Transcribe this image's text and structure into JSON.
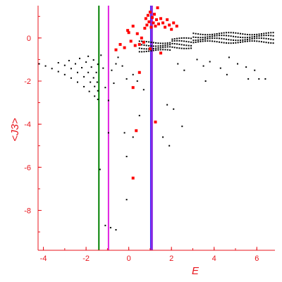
{
  "chart_data": {
    "type": "scatter",
    "xlabel": "E",
    "ylabel": "<J3>",
    "xlim": [
      -4.25,
      6.85
    ],
    "ylim": [
      -9.85,
      1.5
    ],
    "x_ticks": [
      -4,
      -2,
      0,
      2,
      4,
      6
    ],
    "x_tick_labels": [
      "-4",
      "-2",
      "0",
      "2",
      "4",
      "6"
    ],
    "y_ticks": [
      0,
      -2,
      -4,
      -6,
      -8
    ],
    "y_tick_labels": [
      "0",
      "-2",
      "-4",
      "-6",
      "-8"
    ],
    "grid": false,
    "colors": {
      "axes": "#e8141c",
      "black_points": "#000000",
      "red_points": "#ff0000",
      "green_line": "#008000",
      "magenta_line": "#e020e0",
      "purple_line": "#8a2be2",
      "blue_line": "#2020ff"
    },
    "vertical_lines": [
      {
        "x": -1.4,
        "color": "#008000"
      },
      {
        "x": -0.95,
        "color": "#e020e0"
      },
      {
        "x": 1.05,
        "color": "#2020ff"
      },
      {
        "x": 1.08,
        "color": "#8a2be2"
      }
    ],
    "series": [
      {
        "marker": "black-dot",
        "points": [
          [
            -4.2,
            -1.2
          ],
          [
            -3.9,
            -1.3
          ],
          [
            -3.6,
            -1.42
          ],
          [
            -3.3,
            -1.56
          ],
          [
            -3.0,
            -1.7
          ],
          [
            -2.7,
            -1.86
          ],
          [
            -2.4,
            -2.05
          ],
          [
            -2.1,
            -2.26
          ],
          [
            -1.85,
            -2.48
          ],
          [
            -1.6,
            -2.7
          ],
          [
            -1.45,
            -2.85
          ],
          [
            -3.3,
            -1.15
          ],
          [
            -3.0,
            -1.27
          ],
          [
            -2.7,
            -1.42
          ],
          [
            -2.4,
            -1.6
          ],
          [
            -2.1,
            -1.8
          ],
          [
            -1.8,
            -2.05
          ],
          [
            -1.6,
            -2.25
          ],
          [
            -1.45,
            -2.45
          ],
          [
            -2.8,
            -1.05
          ],
          [
            -2.5,
            -1.2
          ],
          [
            -2.2,
            -1.38
          ],
          [
            -1.9,
            -1.6
          ],
          [
            -1.65,
            -1.85
          ],
          [
            -1.48,
            -2.05
          ],
          [
            -2.3,
            -0.95
          ],
          [
            -2.0,
            -1.12
          ],
          [
            -1.75,
            -1.35
          ],
          [
            -1.52,
            -1.6
          ],
          [
            -1.9,
            -0.85
          ],
          [
            -1.65,
            -1.02
          ],
          [
            -1.45,
            -1.22
          ],
          [
            -1.3,
            -0.8
          ],
          [
            -1.2,
            -1.4
          ],
          [
            -1.1,
            -2.3
          ],
          [
            -0.95,
            -2.9
          ],
          [
            -0.8,
            -1.5
          ],
          [
            -0.7,
            -2.1
          ],
          [
            -0.6,
            -1.2
          ],
          [
            -0.5,
            -0.9
          ],
          [
            -0.3,
            -1.3
          ],
          [
            -0.1,
            -1.9
          ],
          [
            -1.35,
            -6.1
          ],
          [
            -1.1,
            -8.7
          ],
          [
            -0.85,
            -8.8
          ],
          [
            -0.6,
            -8.9
          ],
          [
            -0.95,
            -4.4
          ],
          [
            -0.2,
            -4.4
          ],
          [
            0.2,
            -4.6
          ],
          [
            -0.1,
            -5.5
          ],
          [
            -0.1,
            -7.5
          ],
          [
            0.5,
            -3.6
          ],
          [
            0.7,
            -2.4
          ],
          [
            0.4,
            -2.0
          ],
          [
            0.2,
            -1.7
          ],
          [
            1.6,
            -4.6
          ],
          [
            1.9,
            -5.0
          ],
          [
            2.5,
            -4.1
          ],
          [
            1.8,
            -3.1
          ],
          [
            2.1,
            -3.3
          ],
          [
            2.3,
            -1.2
          ],
          [
            2.6,
            -1.5
          ],
          [
            3.2,
            -1.0
          ],
          [
            3.5,
            -1.3
          ],
          [
            3.8,
            -1.1
          ],
          [
            4.3,
            -1.4
          ],
          [
            4.7,
            -0.9
          ],
          [
            5.1,
            -1.2
          ],
          [
            5.5,
            -1.35
          ],
          [
            5.9,
            -1.5
          ],
          [
            6.1,
            -1.9
          ],
          [
            6.4,
            -1.9
          ],
          [
            5.6,
            -1.9
          ],
          [
            3.6,
            -2.0
          ],
          [
            4.6,
            -1.7
          ]
        ]
      },
      {
        "marker": "red-square",
        "points": [
          [
            0.75,
            0.45
          ],
          [
            0.8,
            0.9
          ],
          [
            0.85,
            0.6
          ],
          [
            0.9,
            1.05
          ],
          [
            0.95,
            0.75
          ],
          [
            1.0,
            1.2
          ],
          [
            1.05,
            0.5
          ],
          [
            1.1,
            0.95
          ],
          [
            1.15,
            0.7
          ],
          [
            1.2,
            1.1
          ],
          [
            1.25,
            0.55
          ],
          [
            1.3,
            0.85
          ],
          [
            1.35,
            1.4
          ],
          [
            1.4,
            0.65
          ],
          [
            1.5,
            0.9
          ],
          [
            1.6,
            0.7
          ],
          [
            1.7,
            0.5
          ],
          [
            1.8,
            0.85
          ],
          [
            1.9,
            0.6
          ],
          [
            2.0,
            0.4
          ],
          [
            2.1,
            0.7
          ],
          [
            2.25,
            0.55
          ],
          [
            0.0,
            0.25
          ],
          [
            0.2,
            0.55
          ],
          [
            0.4,
            0.2
          ],
          [
            0.6,
            0.0
          ],
          [
            0.3,
            -0.35
          ],
          [
            0.1,
            -0.15
          ],
          [
            -0.2,
            -0.45
          ],
          [
            -0.4,
            -0.3
          ],
          [
            -0.6,
            -0.55
          ],
          [
            0.5,
            -0.3
          ],
          [
            0.7,
            -0.2
          ],
          [
            -0.05,
            0.35
          ],
          [
            1.0,
            -0.5
          ],
          [
            1.5,
            -0.7
          ],
          [
            0.5,
            -1.6
          ],
          [
            0.2,
            -2.3
          ],
          [
            1.25,
            -3.9
          ],
          [
            0.35,
            -4.3
          ],
          [
            0.2,
            -6.5
          ]
        ]
      }
    ]
  }
}
